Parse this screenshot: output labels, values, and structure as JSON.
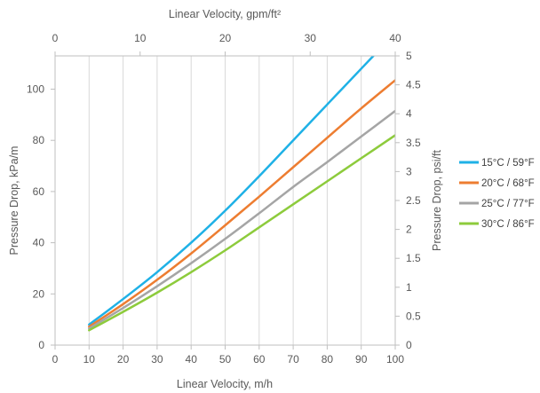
{
  "chart_data": {
    "type": "line",
    "x_bottom": {
      "label": "Linear Velocity, m/h",
      "ticks": [
        0,
        10,
        20,
        30,
        40,
        50,
        60,
        70,
        80,
        90,
        100
      ],
      "range": [
        0,
        100
      ]
    },
    "x_top": {
      "label": "Linear Velocity, gpm/ft²",
      "ticks": [
        0,
        10,
        20,
        30,
        40
      ],
      "range": [
        0,
        40
      ]
    },
    "y_left": {
      "label": "Pressure Drop, kPa/m",
      "ticks": [
        0,
        20,
        40,
        60,
        80,
        100
      ],
      "range": [
        0,
        113
      ]
    },
    "y_right": {
      "label": "Pressure Drop, psi/ft",
      "ticks": [
        "0",
        "0.5",
        "1",
        "1.5",
        "2",
        "2.5",
        "3",
        "3.5",
        "4",
        "4.5",
        "5"
      ],
      "range": [
        0,
        5
      ]
    },
    "grid": "vertical-major-only",
    "legend_position": "right",
    "x": [
      10,
      20,
      30,
      40,
      50,
      60,
      70,
      80,
      90,
      100
    ],
    "series": [
      {
        "name": "15°C / 59°F",
        "color": "#1FB1E6",
        "values": [
          8,
          18,
          28.5,
          40,
          52.5,
          66,
          80,
          94,
          108,
          122
        ]
      },
      {
        "name": "20°C / 68°F",
        "color": "#ED7D31",
        "values": [
          7.2,
          16,
          25.5,
          35.8,
          46.8,
          58,
          69.5,
          81,
          92.5,
          103.5
        ]
      },
      {
        "name": "25°C / 77°F",
        "color": "#A5A5A5",
        "values": [
          6.5,
          14.5,
          23,
          32,
          41.5,
          51.5,
          61.8,
          71.5,
          81.5,
          91.5
        ]
      },
      {
        "name": "30°C / 86°F",
        "color": "#8DCB3C",
        "values": [
          5.8,
          13,
          20.5,
          28.5,
          37,
          46,
          55,
          64,
          73,
          82
        ]
      }
    ]
  }
}
